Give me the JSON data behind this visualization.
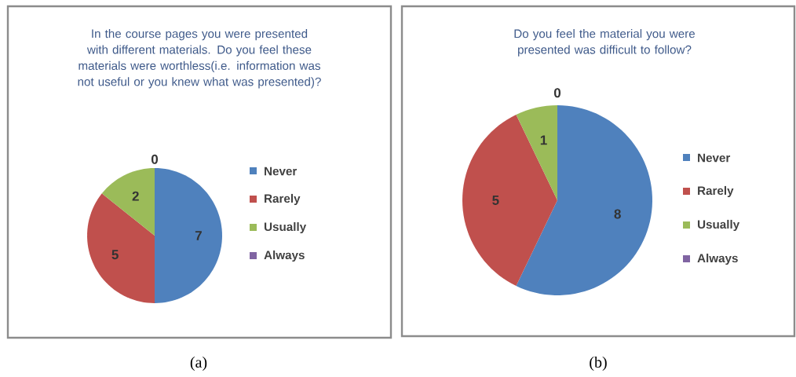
{
  "chart_data": [
    {
      "type": "pie",
      "title": "In the course pages you were presented with different materials. Do you feel these materials were worthless(i.e. information was not useful or you knew what was presented)?",
      "categories": [
        "Never",
        "Rarely",
        "Usually",
        "Always"
      ],
      "values": [
        7,
        5,
        2,
        0
      ],
      "value_labels": [
        "7",
        "5",
        "2",
        "0"
      ],
      "colors": [
        "#4f81bd",
        "#c0504d",
        "#9bbb59",
        "#8064a2"
      ],
      "legend": "right",
      "annotations": [
        "(a)"
      ]
    },
    {
      "type": "pie",
      "title": "Do you feel the material you were presented was difficult to follow?",
      "categories": [
        "Never",
        "Rarely",
        "Usually",
        "Always"
      ],
      "values": [
        8,
        5,
        1,
        0
      ],
      "value_labels": [
        "8",
        "5",
        "1",
        "0"
      ],
      "colors": [
        "#4f81bd",
        "#c0504d",
        "#9bbb59",
        "#8064a2"
      ],
      "legend": "right",
      "annotations": [
        "(b)"
      ]
    }
  ]
}
